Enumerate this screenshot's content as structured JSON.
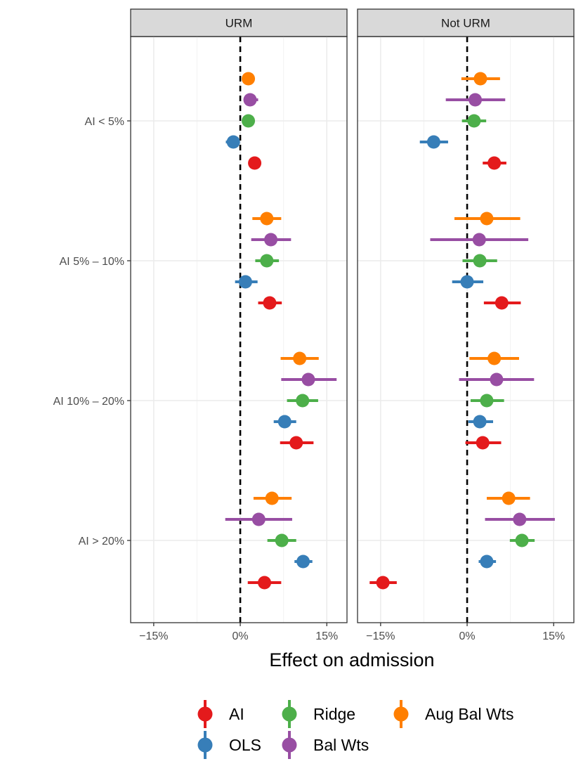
{
  "chart_data": {
    "type": "scatter",
    "subtype": "dot-and-whisker, faceted",
    "xlabel": "Effect on admission",
    "xlim": [
      -0.19,
      0.185
    ],
    "x_ticks": [
      {
        "value": -0.15,
        "label": "−15%"
      },
      {
        "value": 0,
        "label": "0%"
      },
      {
        "value": 0.15,
        "label": "15%"
      }
    ],
    "reference_line": {
      "x": 0,
      "style": "dashed"
    },
    "grid": true,
    "categories": [
      "AI < 5%",
      "AI 5% – 10%",
      "AI 10% – 20%",
      "AI > 20%"
    ],
    "series_order_top_to_bottom": [
      "Aug Bal Wts",
      "Bal Wts",
      "Ridge",
      "OLS",
      "AI"
    ],
    "legend": {
      "position": "bottom",
      "items": [
        {
          "name": "AI",
          "color": "#e41a1c"
        },
        {
          "name": "OLS",
          "color": "#377eb8"
        },
        {
          "name": "Ridge",
          "color": "#4daf4a"
        },
        {
          "name": "Bal Wts",
          "color": "#984ea3"
        },
        {
          "name": "Aug Bal Wts",
          "color": "#ff7f00"
        }
      ]
    },
    "panels": [
      {
        "strip": "URM",
        "series": [
          {
            "name": "Aug Bal Wts",
            "color": "#ff7f00",
            "points": [
              {
                "category": "AI < 5%",
                "est": 0.014,
                "lo": 0.014,
                "hi": 0.014
              },
              {
                "category": "AI 5% – 10%",
                "est": 0.046,
                "lo": 0.021,
                "hi": 0.071
              },
              {
                "category": "AI 10% – 20%",
                "est": 0.103,
                "lo": 0.07,
                "hi": 0.136
              },
              {
                "category": "AI > 20%",
                "est": 0.055,
                "lo": 0.023,
                "hi": 0.089
              }
            ]
          },
          {
            "name": "Bal Wts",
            "color": "#984ea3",
            "points": [
              {
                "category": "AI < 5%",
                "est": 0.017,
                "lo": 0.008,
                "hi": 0.031
              },
              {
                "category": "AI 5% – 10%",
                "est": 0.053,
                "lo": 0.019,
                "hi": 0.088
              },
              {
                "category": "AI 10% – 20%",
                "est": 0.118,
                "lo": 0.071,
                "hi": 0.167
              },
              {
                "category": "AI > 20%",
                "est": 0.032,
                "lo": -0.026,
                "hi": 0.09
              }
            ]
          },
          {
            "name": "Ridge",
            "color": "#4daf4a",
            "points": [
              {
                "category": "AI < 5%",
                "est": 0.014,
                "lo": 0.014,
                "hi": 0.014
              },
              {
                "category": "AI 5% – 10%",
                "est": 0.046,
                "lo": 0.026,
                "hi": 0.067
              },
              {
                "category": "AI 10% – 20%",
                "est": 0.108,
                "lo": 0.081,
                "hi": 0.135
              },
              {
                "category": "AI > 20%",
                "est": 0.072,
                "lo": 0.047,
                "hi": 0.097
              }
            ]
          },
          {
            "name": "OLS",
            "color": "#377eb8",
            "points": [
              {
                "category": "AI < 5%",
                "est": -0.012,
                "lo": -0.025,
                "hi": -0.003
              },
              {
                "category": "AI 5% – 10%",
                "est": 0.009,
                "lo": -0.009,
                "hi": 0.03
              },
              {
                "category": "AI 10% – 20%",
                "est": 0.077,
                "lo": 0.058,
                "hi": 0.097
              },
              {
                "category": "AI > 20%",
                "est": 0.109,
                "lo": 0.094,
                "hi": 0.125
              }
            ]
          },
          {
            "name": "AI",
            "color": "#e41a1c",
            "points": [
              {
                "category": "AI < 5%",
                "est": 0.025,
                "lo": 0.025,
                "hi": 0.025
              },
              {
                "category": "AI 5% – 10%",
                "est": 0.051,
                "lo": 0.031,
                "hi": 0.072
              },
              {
                "category": "AI 10% – 20%",
                "est": 0.097,
                "lo": 0.069,
                "hi": 0.127
              },
              {
                "category": "AI > 20%",
                "est": 0.042,
                "lo": 0.013,
                "hi": 0.071
              }
            ]
          }
        ]
      },
      {
        "strip": "Not URM",
        "series": [
          {
            "name": "Aug Bal Wts",
            "color": "#ff7f00",
            "points": [
              {
                "category": "AI < 5%",
                "est": 0.023,
                "lo": -0.01,
                "hi": 0.057
              },
              {
                "category": "AI 5% – 10%",
                "est": 0.034,
                "lo": -0.022,
                "hi": 0.092
              },
              {
                "category": "AI 10% – 20%",
                "est": 0.047,
                "lo": 0.004,
                "hi": 0.09
              },
              {
                "category": "AI > 20%",
                "est": 0.072,
                "lo": 0.034,
                "hi": 0.109
              }
            ]
          },
          {
            "name": "Bal Wts",
            "color": "#984ea3",
            "points": [
              {
                "category": "AI < 5%",
                "est": 0.014,
                "lo": -0.037,
                "hi": 0.066
              },
              {
                "category": "AI 5% – 10%",
                "est": 0.021,
                "lo": -0.064,
                "hi": 0.106
              },
              {
                "category": "AI 10% – 20%",
                "est": 0.051,
                "lo": -0.014,
                "hi": 0.116
              },
              {
                "category": "AI > 20%",
                "est": 0.091,
                "lo": 0.031,
                "hi": 0.152
              }
            ]
          },
          {
            "name": "Ridge",
            "color": "#4daf4a",
            "points": [
              {
                "category": "AI < 5%",
                "est": 0.012,
                "lo": -0.009,
                "hi": 0.033
              },
              {
                "category": "AI 5% – 10%",
                "est": 0.022,
                "lo": -0.008,
                "hi": 0.052
              },
              {
                "category": "AI 10% – 20%",
                "est": 0.034,
                "lo": 0.006,
                "hi": 0.064
              },
              {
                "category": "AI > 20%",
                "est": 0.095,
                "lo": 0.074,
                "hi": 0.117
              }
            ]
          },
          {
            "name": "OLS",
            "color": "#377eb8",
            "points": [
              {
                "category": "AI < 5%",
                "est": -0.058,
                "lo": -0.082,
                "hi": -0.033
              },
              {
                "category": "AI 5% – 10%",
                "est": 0.0,
                "lo": -0.026,
                "hi": 0.028
              },
              {
                "category": "AI 10% – 20%",
                "est": 0.022,
                "lo": 0.002,
                "hi": 0.045
              },
              {
                "category": "AI > 20%",
                "est": 0.034,
                "lo": 0.02,
                "hi": 0.05
              }
            ]
          },
          {
            "name": "AI",
            "color": "#e41a1c",
            "points": [
              {
                "category": "AI < 5%",
                "est": 0.047,
                "lo": 0.027,
                "hi": 0.068
              },
              {
                "category": "AI 5% – 10%",
                "est": 0.06,
                "lo": 0.029,
                "hi": 0.093
              },
              {
                "category": "AI 10% – 20%",
                "est": 0.027,
                "lo": -0.003,
                "hi": 0.059
              },
              {
                "category": "AI > 20%",
                "est": -0.146,
                "lo": -0.169,
                "hi": -0.122
              }
            ]
          }
        ]
      }
    ]
  }
}
